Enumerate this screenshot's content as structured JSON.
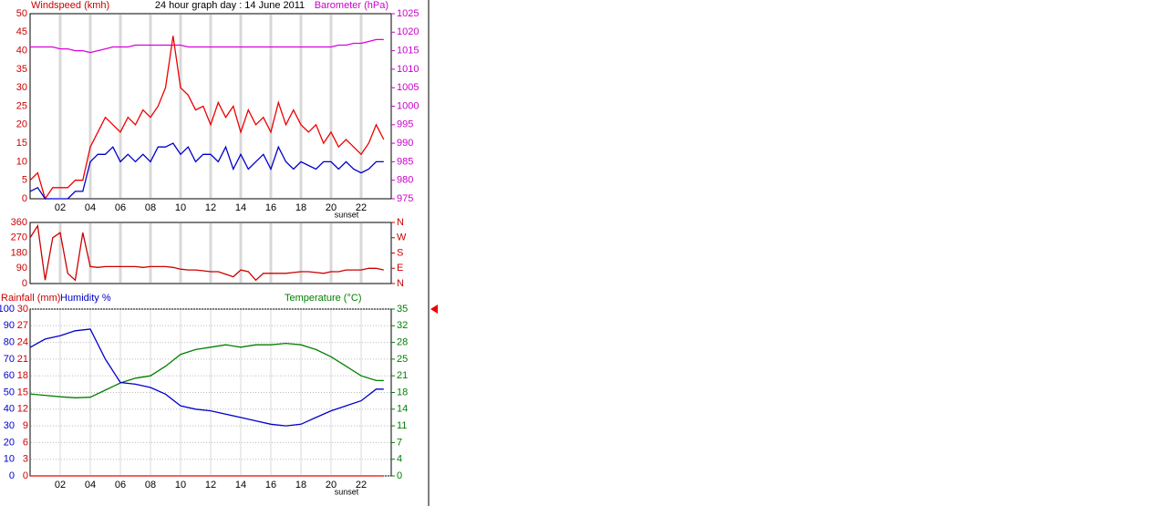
{
  "chart_data": [
    {
      "type": "line",
      "title": "24 hour graph day : 14 June 2011",
      "ylabel": "Windspeed (kmh)",
      "y2label": "Barometer (hPa)",
      "ycolor": "#cc0000",
      "y2color": "#cc00cc",
      "annotation": "sunset",
      "grid": "x",
      "xlim": [
        0,
        24
      ],
      "xticks": [
        {
          "value": 2,
          "label": "02"
        },
        {
          "value": 4,
          "label": "04"
        },
        {
          "value": 6,
          "label": "06"
        },
        {
          "value": 8,
          "label": "08"
        },
        10,
        12,
        14,
        16,
        18,
        20,
        22
      ],
      "ylim": [
        0,
        50
      ],
      "yticks": [
        0,
        5,
        10,
        15,
        20,
        25,
        30,
        35,
        40,
        45,
        50
      ],
      "y2lim": [
        975,
        1025
      ],
      "y2ticks": [
        975,
        980,
        985,
        990,
        995,
        1000,
        1005,
        1010,
        1015,
        1020,
        1025
      ],
      "x": [
        0,
        0.5,
        1,
        1.5,
        2,
        2.5,
        3,
        3.5,
        4,
        4.5,
        5,
        5.5,
        6,
        6.5,
        7,
        7.5,
        8,
        8.5,
        9,
        9.5,
        10,
        10.5,
        11,
        11.5,
        12,
        12.5,
        13,
        13.5,
        14,
        14.5,
        15,
        15.5,
        16,
        16.5,
        17,
        17.5,
        18,
        18.5,
        19,
        19.5,
        20,
        20.5,
        21,
        21.5,
        22,
        22.5,
        23,
        23.5
      ],
      "series": [
        {
          "color": "#dd00dd",
          "axis": "y2",
          "values": [
            1016,
            1016,
            1016,
            1016,
            1015.5,
            1015.5,
            1015,
            1015,
            1014.5,
            1015,
            1015.5,
            1016,
            1016,
            1016,
            1016.5,
            1016.5,
            1016.5,
            1016.5,
            1016.5,
            1016.5,
            1016.5,
            1016,
            1016,
            1016,
            1016,
            1016,
            1016,
            1016,
            1016,
            1016,
            1016,
            1016,
            1016,
            1016,
            1016,
            1016,
            1016,
            1016,
            1016,
            1016,
            1016,
            1016.5,
            1016.5,
            1017,
            1017,
            1017.5,
            1018,
            1018
          ]
        },
        {
          "color": "#ee0000",
          "values": [
            5,
            7,
            0,
            3,
            3,
            3,
            5,
            5,
            14,
            18,
            22,
            20,
            18,
            22,
            20,
            24,
            22,
            25,
            30,
            44,
            30,
            28,
            24,
            25,
            20,
            26,
            22,
            25,
            18,
            24,
            20,
            22,
            18,
            26,
            20,
            24,
            20,
            18,
            20,
            15,
            18,
            14,
            16,
            14,
            12,
            15,
            20,
            16
          ]
        },
        {
          "color": "#0000cc",
          "values": [
            2,
            3,
            0,
            0,
            0,
            0,
            2,
            2,
            10,
            12,
            12,
            14,
            10,
            12,
            10,
            12,
            10,
            14,
            14,
            15,
            12,
            14,
            10,
            12,
            12,
            10,
            14,
            8,
            12,
            8,
            10,
            12,
            8,
            14,
            10,
            8,
            10,
            9,
            8,
            10,
            10,
            8,
            10,
            8,
            7,
            8,
            10,
            10
          ]
        }
      ]
    },
    {
      "type": "line",
      "ycolor": "#cc0000",
      "y2color": "#cc0000",
      "grid": "x",
      "xlim": [
        0,
        24
      ],
      "ylim": [
        0,
        360
      ],
      "yticks": [
        0,
        90,
        180,
        270,
        360
      ],
      "y2lim": [
        0,
        360
      ],
      "y2ticks": [
        {
          "value": 0,
          "label": "N"
        },
        {
          "value": 90,
          "label": "E"
        },
        {
          "value": 180,
          "label": "S"
        },
        {
          "value": 270,
          "label": "W"
        },
        {
          "value": 360,
          "label": "N"
        }
      ],
      "x": [
        0,
        0.5,
        1,
        1.5,
        2,
        2.5,
        3,
        3.5,
        4,
        4.5,
        5,
        5.5,
        6,
        6.5,
        7,
        7.5,
        8,
        8.5,
        9,
        9.5,
        10,
        10.5,
        11,
        11.5,
        12,
        12.5,
        13,
        13.5,
        14,
        14.5,
        15,
        15.5,
        16,
        16.5,
        17,
        17.5,
        18,
        18.5,
        19,
        19.5,
        20,
        20.5,
        21,
        21.5,
        22,
        22.5,
        23,
        23.5
      ],
      "series": [
        {
          "color": "#cc0000",
          "values": [
            270,
            340,
            20,
            270,
            300,
            60,
            20,
            300,
            100,
            95,
            100,
            100,
            100,
            100,
            100,
            95,
            100,
            100,
            100,
            95,
            85,
            80,
            80,
            75,
            70,
            70,
            55,
            40,
            80,
            70,
            20,
            60,
            60,
            60,
            60,
            65,
            70,
            70,
            65,
            60,
            70,
            70,
            80,
            80,
            80,
            90,
            90,
            80
          ]
        }
      ]
    },
    {
      "type": "line",
      "ylabel": "Humidity %",
      "y2label": "Temperature (°C)",
      "y3label": "Rainfall (mm)",
      "ycolor": "#0000cc",
      "y2color": "#008000",
      "y3color": "#cc0000",
      "annotation": "sunset",
      "grid": "both",
      "xlim": [
        0,
        24
      ],
      "xticks": [
        {
          "value": 2,
          "label": "02"
        },
        {
          "value": 4,
          "label": "04"
        },
        {
          "value": 6,
          "label": "06"
        },
        {
          "value": 8,
          "label": "08"
        },
        10,
        12,
        14,
        16,
        18,
        20,
        22
      ],
      "ylim": [
        0,
        100
      ],
      "yticks": [
        0,
        10,
        20,
        30,
        40,
        50,
        60,
        70,
        80,
        90,
        100
      ],
      "y2lim": [
        0,
        35
      ],
      "y2ticks": [
        0,
        {
          "value": 3.5,
          "label": "4"
        },
        7,
        {
          "value": 10.5,
          "label": "11"
        },
        14,
        {
          "value": 17.5,
          "label": "18"
        },
        21,
        {
          "value": 24.5,
          "label": "25"
        },
        28,
        {
          "value": 31.5,
          "label": "32"
        },
        35
      ],
      "y3lim": [
        0,
        30
      ],
      "y3ticks": [
        0,
        3,
        6,
        9,
        12,
        15,
        18,
        21,
        24,
        27,
        30
      ],
      "x": [
        0,
        1,
        2,
        3,
        4,
        5,
        6,
        7,
        8,
        9,
        10,
        11,
        12,
        13,
        14,
        15,
        16,
        17,
        18,
        19,
        20,
        21,
        22,
        23,
        23.5
      ],
      "series": [
        {
          "color": "#ee0000",
          "axis": "y3",
          "values": [
            0,
            0,
            0,
            0,
            0,
            0,
            0,
            0,
            0,
            0,
            0,
            0,
            0,
            0,
            0,
            0,
            0,
            0,
            0,
            0,
            0,
            0,
            0,
            0,
            0
          ]
        },
        {
          "color": "#008000",
          "axis": "y2",
          "values": [
            17.2,
            16.9,
            16.6,
            16.4,
            16.5,
            18,
            19.5,
            20.5,
            21,
            23,
            25.5,
            26.5,
            27,
            27.5,
            27,
            27.5,
            27.5,
            27.8,
            27.5,
            26.5,
            25,
            23,
            21,
            20,
            20
          ]
        },
        {
          "color": "#0000cc",
          "values": [
            77,
            82,
            84,
            87,
            88,
            70,
            56,
            55,
            53,
            49,
            42,
            40,
            39,
            37,
            35,
            33,
            31,
            30,
            31,
            35,
            39,
            42,
            45,
            52,
            52
          ]
        }
      ]
    }
  ]
}
